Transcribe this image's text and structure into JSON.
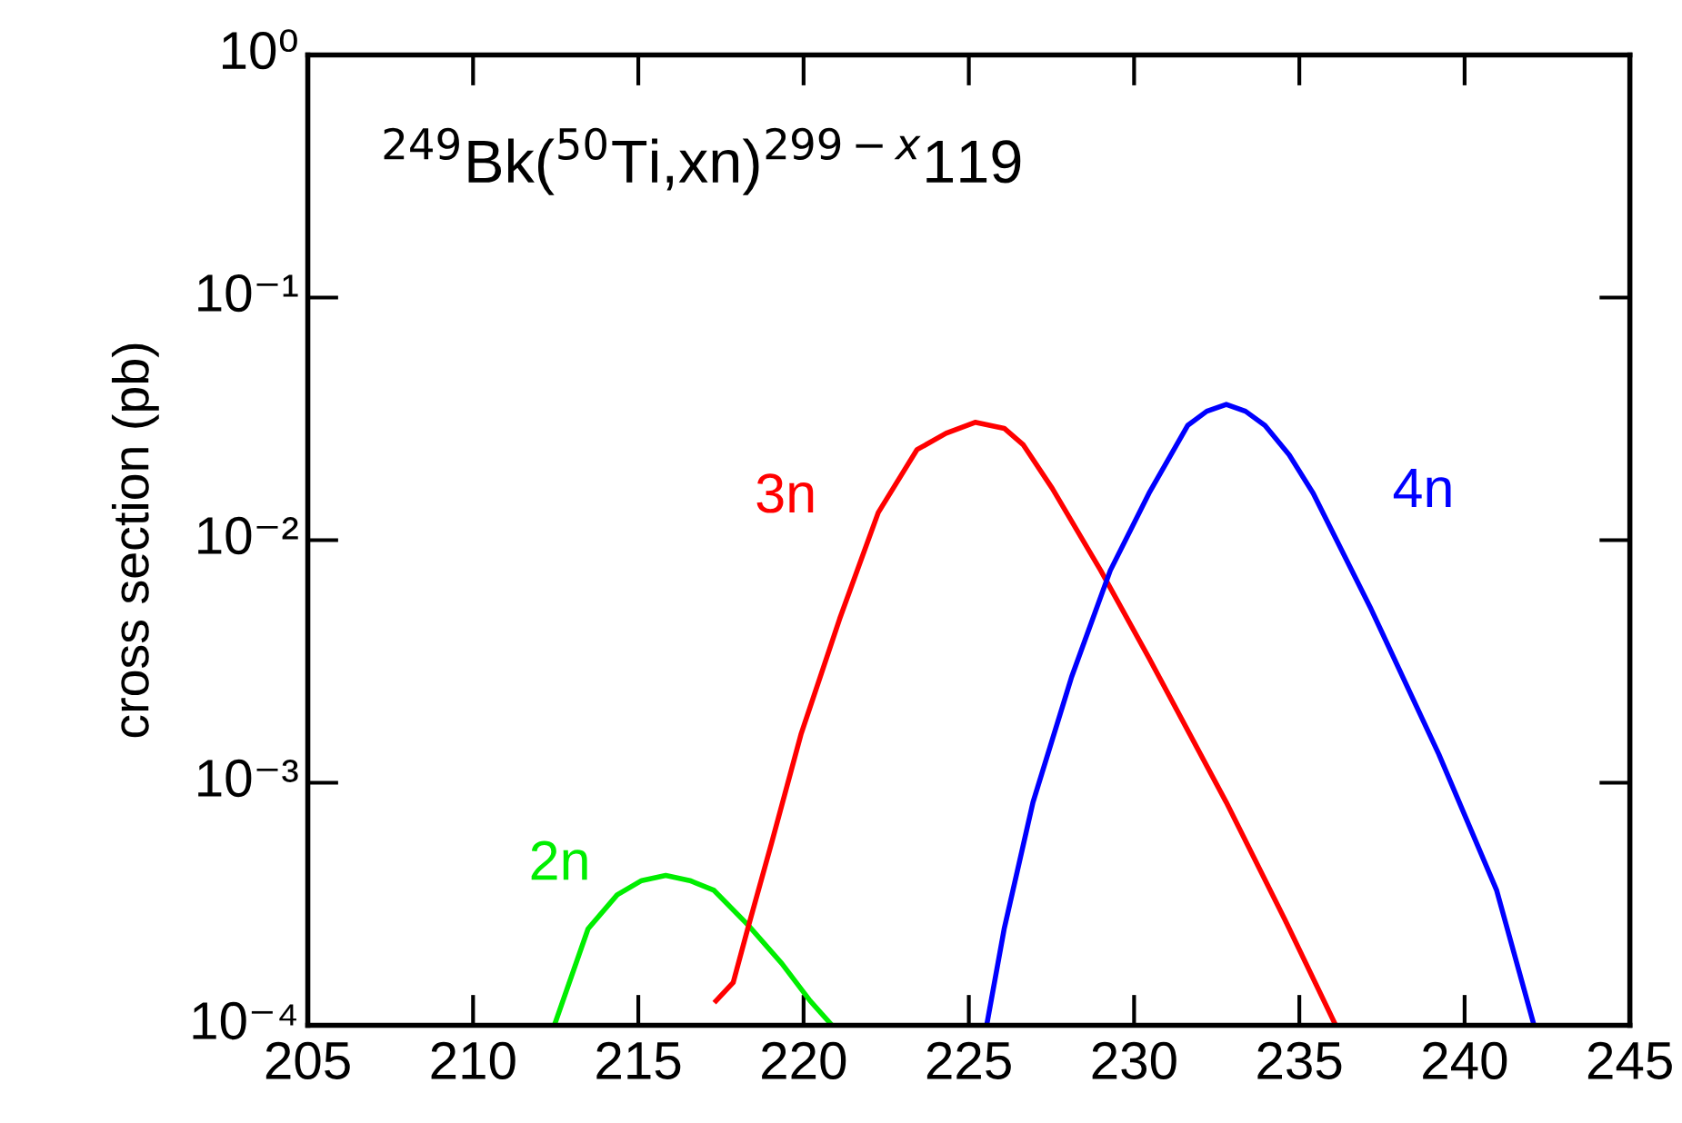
{
  "chart_data": {
    "type": "line",
    "title": "$^{249}$Bk($^{50}$Ti,xn)$^{299−x}$119",
    "ylabel": "cross section (pb)",
    "log": "y",
    "xlim": [
      205,
      245
    ],
    "xticks": [
      205,
      210,
      215,
      220,
      225,
      230,
      235,
      240,
      245
    ],
    "ylim": [
      0.0001,
      1
    ],
    "yticks": [
      {
        "value": 0.0001,
        "label": "10⁻⁴"
      },
      {
        "value": 0.001,
        "label": "10⁻³"
      },
      {
        "value": 0.01,
        "label": "10⁻²"
      },
      {
        "value": 0.1,
        "label": "10⁻¹"
      },
      {
        "value": 1,
        "label": "10⁰"
      }
    ],
    "grid": false,
    "legend": false,
    "marker": "none",
    "line_style": "solid",
    "series": [
      {
        "name": "2n",
        "color": "#00ee00",
        "x": [
          212.46,
          213.48,
          214.36,
          215.1,
          215.83,
          216.56,
          217.29,
          218.31,
          219.34,
          220.2,
          220.86
        ],
        "values": [
          0.0001,
          0.00025,
          0.000345,
          0.000395,
          0.000415,
          0.000395,
          0.00036,
          0.00026,
          0.00018,
          0.000126,
          0.0001
        ]
      },
      {
        "name": "3n",
        "color": "#ff0000",
        "x": [
          217.35,
          217.87,
          218.31,
          219.04,
          219.92,
          221.09,
          222.26,
          223.43,
          224.31,
          225.19,
          226.07,
          226.65,
          227.53,
          228.99,
          230.45,
          232.79,
          234.55,
          236.1
        ],
        "values": [
          0.000126,
          0.00015,
          0.00025,
          0.00057,
          0.00158,
          0.00473,
          0.013,
          0.0236,
          0.0276,
          0.0306,
          0.0289,
          0.0247,
          0.0163,
          0.0075,
          0.00327,
          0.00083,
          0.000275,
          0.0001
        ]
      },
      {
        "name": "4n",
        "color": "#0000ff",
        "x": [
          225.54,
          226.07,
          226.94,
          228.11,
          229.28,
          230.45,
          231.62,
          232.2,
          232.79,
          233.37,
          233.96,
          234.69,
          235.42,
          237.17,
          239.22,
          240.97,
          242.1
        ],
        "values": [
          0.0001,
          0.00025,
          0.00083,
          0.00273,
          0.0075,
          0.0156,
          0.0297,
          0.034,
          0.0363,
          0.034,
          0.0297,
          0.0225,
          0.0156,
          0.0052,
          0.00131,
          0.00036,
          0.0001
        ]
      }
    ]
  }
}
